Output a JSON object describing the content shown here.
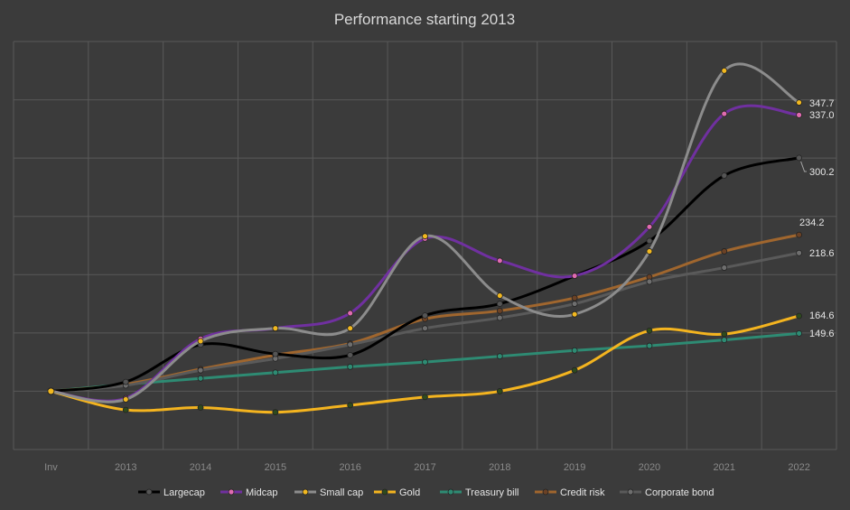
{
  "chart_data": {
    "type": "line",
    "title": "Performance starting 2013",
    "xlabel": "",
    "ylabel": "",
    "categories": [
      "Inv",
      "2013",
      "2014",
      "2015",
      "2016",
      "2017",
      "2018",
      "2019",
      "2020",
      "2021",
      "2022"
    ],
    "ylim": [
      50,
      400
    ],
    "y_tick_labels_shown": false,
    "grid": true,
    "legend_position": "bottom",
    "series": [
      {
        "name": "Largecap",
        "color": "#000000",
        "marker": "#555555",
        "values": [
          100,
          108,
          140,
          132,
          131,
          165,
          175,
          199,
          229,
          285,
          300.2
        ],
        "end_label": "300.2"
      },
      {
        "name": "Midcap",
        "color": "#7030a0",
        "marker": "#e06bb0",
        "values": [
          100,
          94,
          145,
          154,
          167,
          231,
          212,
          199,
          241,
          338,
          337.0
        ],
        "end_label": "337.0"
      },
      {
        "name": "Small cap",
        "color": "#8c8c8c",
        "marker": "#f2b81f",
        "values": [
          100,
          93,
          143,
          154,
          154,
          233,
          182,
          166,
          220,
          375,
          347.7
        ],
        "end_label": "347.7"
      },
      {
        "name": "Gold",
        "color": "#f4b41f",
        "marker": "#2e4a1e",
        "values": [
          100,
          84,
          86,
          82,
          88,
          95,
          100,
          118,
          152,
          149,
          164.6
        ],
        "end_label": "164.6"
      },
      {
        "name": "Treasury bill",
        "color": "#2e8b73",
        "marker": "#2e8b73",
        "values": [
          100,
          106,
          111,
          116,
          121,
          125,
          130,
          135,
          139,
          144,
          149.6
        ],
        "end_label": "149.6"
      },
      {
        "name": "Credit risk",
        "color": "#a0662e",
        "marker": "#6b4226",
        "values": [
          100,
          106,
          119,
          131,
          141,
          162,
          169,
          180,
          198,
          220,
          234.2
        ],
        "end_label": "234.2"
      },
      {
        "name": "Corporate bond",
        "color": "#5a5a5a",
        "marker": "#6e6e6e",
        "values": [
          100,
          105,
          118,
          128,
          140,
          154,
          163,
          175,
          194,
          206,
          218.6
        ],
        "end_label": "218.6"
      }
    ]
  }
}
